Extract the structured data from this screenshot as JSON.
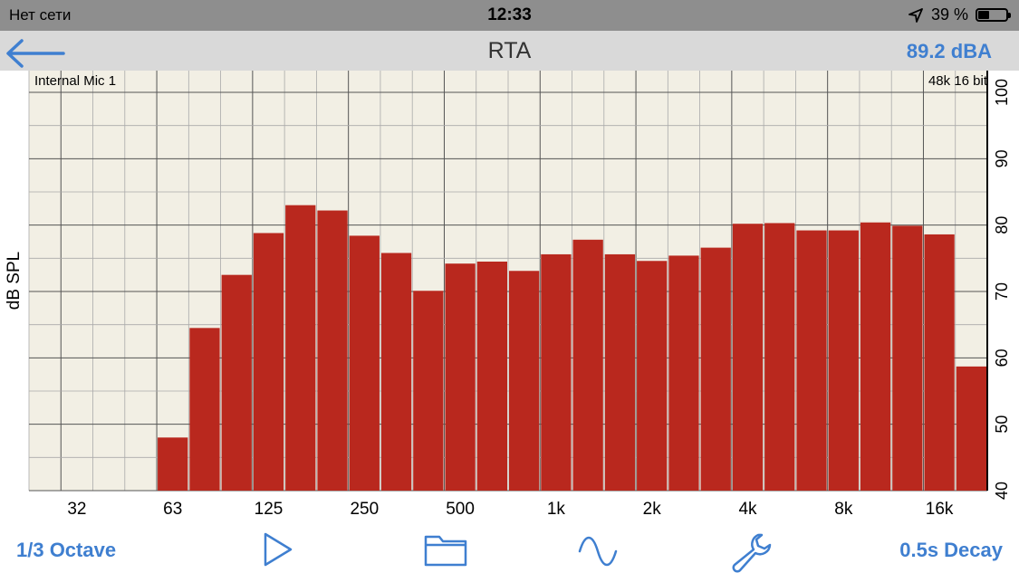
{
  "status_bar": {
    "carrier": "Нет сети",
    "time": "12:33",
    "battery_text": "39 %",
    "battery_level": 0.39,
    "location_icon": "location-arrow-icon"
  },
  "nav": {
    "title": "RTA",
    "level": "89.2 dBA",
    "back_icon": "back-arrow-icon"
  },
  "chart_data": {
    "type": "bar",
    "input_label": "Internal Mic 1",
    "format_label": "48k 16 bit",
    "ylabel": "dB SPL",
    "ylim": [
      40,
      100
    ],
    "yticks": [
      40,
      50,
      60,
      70,
      80,
      90,
      100
    ],
    "xtick_labels": [
      "32",
      "63",
      "125",
      "250",
      "500",
      "1k",
      "2k",
      "4k",
      "8k",
      "16k"
    ],
    "bar_color": "#b9281e",
    "plot_bg": "#f2efe4",
    "values": [
      null,
      null,
      null,
      null,
      48,
      64.5,
      72.5,
      78.8,
      83,
      82.2,
      78.4,
      75.8,
      70.1,
      74.2,
      74.5,
      73.1,
      75.6,
      77.8,
      75.6,
      74.6,
      75.4,
      76.6,
      80.2,
      80.3,
      79.2,
      79.2,
      80.4,
      79.9,
      78.6,
      58.7
    ]
  },
  "toolbar": {
    "bandwidth": "1/3 Octave",
    "decay": "0.5s Decay",
    "play_icon": "play-icon",
    "folder_icon": "folder-icon",
    "wave_icon": "sine-wave-icon",
    "wrench_icon": "wrench-icon"
  }
}
